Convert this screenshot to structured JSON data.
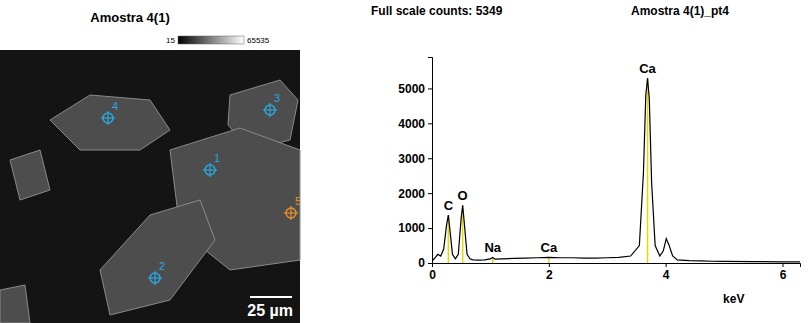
{
  "chart_data": {
    "type": "line",
    "title": "Amostra 4(1)_pt4",
    "subtitle": "Full scale counts: 5349",
    "x_label": "keV",
    "x": [
      0,
      0.05,
      0.1,
      0.15,
      0.2,
      0.25,
      0.28,
      0.31,
      0.35,
      0.4,
      0.45,
      0.5,
      0.525,
      0.55,
      0.6,
      0.65,
      0.7,
      0.8,
      0.9,
      1.0,
      1.04,
      1.08,
      1.2,
      1.4,
      1.6,
      1.8,
      2.0,
      2.2,
      2.4,
      2.6,
      2.8,
      3.0,
      3.2,
      3.4,
      3.55,
      3.62,
      3.66,
      3.69,
      3.72,
      3.76,
      3.82,
      3.9,
      3.96,
      4.01,
      4.06,
      4.12,
      4.2,
      4.4,
      4.6,
      4.8,
      5.0,
      5.5,
      6.0,
      6.3
    ],
    "values": [
      50,
      150,
      250,
      200,
      400,
      1100,
      1370,
      900,
      250,
      120,
      250,
      1300,
      1650,
      1200,
      250,
      120,
      90,
      80,
      90,
      120,
      160,
      110,
      120,
      130,
      140,
      150,
      160,
      150,
      150,
      140,
      140,
      150,
      160,
      200,
      500,
      2600,
      4800,
      5300,
      4700,
      2300,
      500,
      200,
      350,
      700,
      500,
      200,
      90,
      70,
      60,
      50,
      45,
      40,
      35,
      30
    ],
    "color": "#000000",
    "xlim": [
      0,
      6.3
    ],
    "ylim": [
      0,
      5900
    ],
    "xticks": [
      0,
      2,
      4,
      6
    ],
    "yticks": [
      0,
      1000,
      2000,
      3000,
      4000,
      5000
    ],
    "grid": false,
    "annotations": [
      {
        "label": "C",
        "x": 0.28,
        "y": 1370
      },
      {
        "label": "O",
        "x": 0.525,
        "y": 1650
      },
      {
        "label": "Na",
        "x": 1.04,
        "y": 160
      },
      {
        "label": "Ca",
        "x": 2.0,
        "y": 160
      },
      {
        "label": "Ca",
        "x": 3.69,
        "y": 5300
      }
    ],
    "annotation_color": "#e8d800"
  },
  "image_panel": {
    "title": "Amostra 4(1)",
    "colorbar_range": [
      15,
      65535
    ],
    "scale_bar": "25 µm",
    "points": [
      {
        "label": "1",
        "color": "#2aa8e0"
      },
      {
        "label": "2",
        "color": "#2aa8e0"
      },
      {
        "label": "3",
        "color": "#2aa8e0"
      },
      {
        "label": "4",
        "color": "#2aa8e0"
      },
      {
        "label": "5",
        "color": "#e8902a"
      }
    ]
  }
}
